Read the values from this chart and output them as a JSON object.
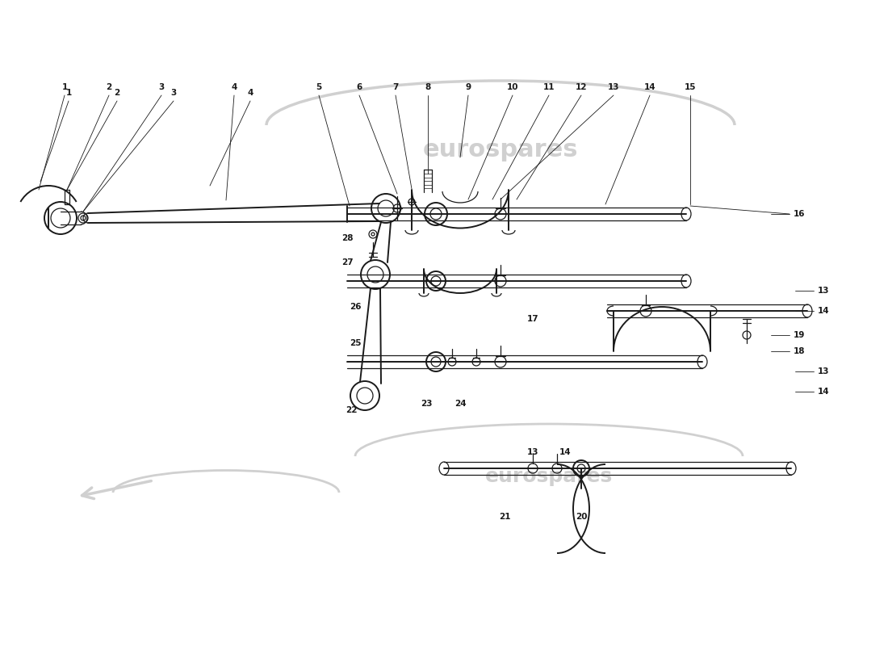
{
  "bg_color": "#ffffff",
  "line_color": "#1a1a1a",
  "label_color": "#1a1a1a",
  "watermark_color": "#d0d0d0",
  "fig_width": 11.0,
  "fig_height": 8.0,
  "dpi": 100,
  "lw_main": 1.4,
  "lw_thin": 0.9,
  "lw_guide": 0.6,
  "label_fontsize": 7.5
}
